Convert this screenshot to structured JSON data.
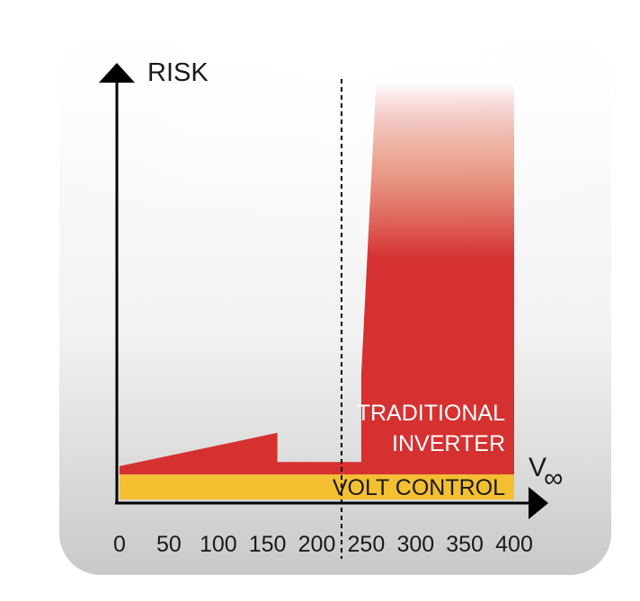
{
  "chart_data": {
    "type": "area",
    "y_axis_label": "RISK",
    "x_axis_label": "V",
    "x_axis_label_symbol": "∞",
    "x_ticks": [
      "0",
      "50",
      "100",
      "150",
      "200",
      "250",
      "300",
      "350",
      "400"
    ],
    "x_tick_values": [
      0,
      50,
      100,
      150,
      200,
      250,
      300,
      350,
      400
    ],
    "xlim": [
      0,
      400
    ],
    "y_units_note": "relative risk (unlabeled axis, values estimated 0-100)",
    "ylim": [
      0,
      100
    ],
    "threshold_x": 225,
    "series": [
      {
        "name": "TRADITIONAL INVERTER",
        "name_lines": [
          "TRADITIONAL",
          "INVERTER"
        ],
        "color": "#d63131",
        "points": [
          [
            0,
            8
          ],
          [
            160,
            16
          ],
          [
            160,
            9
          ],
          [
            245,
            9
          ],
          [
            245,
            30
          ],
          [
            260,
            100
          ],
          [
            400,
            100
          ],
          [
            400,
            6
          ],
          [
            0,
            6
          ]
        ]
      },
      {
        "name": "VOLT CONTROL",
        "color": "#f4c031",
        "baseline": 0,
        "top": 6,
        "x_range": [
          0,
          400
        ]
      }
    ]
  }
}
